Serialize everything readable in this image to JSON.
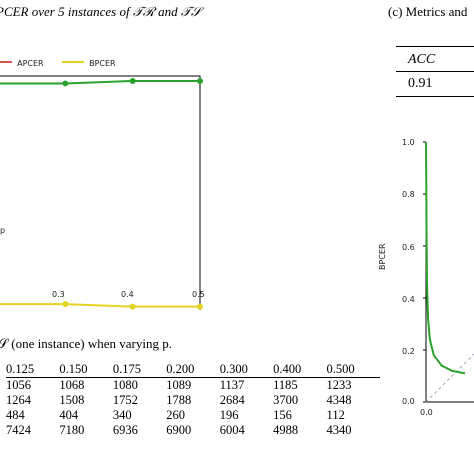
{
  "captions": {
    "left_top": "PCER over 5 instances of 𝒯ℛ and 𝒯𝒮",
    "right_top": "(c) Metrics and",
    "table_caption": "𝒮 (one instance) when varying p."
  },
  "legend": {
    "apcer": "APCER",
    "bpcer": "BPCER"
  },
  "colors": {
    "apcer": "#d9534f",
    "bpcer": "#e5d323",
    "acc_curve": "#2ca02c",
    "diag": "#9aa3b5"
  },
  "metric_table": {
    "header": "ACC",
    "value": "0.91"
  },
  "left_chart": {
    "x_label": "p",
    "x_ticks": [
      "0.3",
      "0.4",
      "0.5"
    ]
  },
  "right_chart": {
    "y_label": "BPCER",
    "y_ticks": [
      "1.0",
      "0.8",
      "0.6",
      "0.4",
      "0.2",
      "0.0"
    ],
    "x_ticks": [
      "0.0"
    ]
  },
  "data_table": {
    "header": [
      "0.125",
      "0.150",
      "0.175",
      "0.200",
      "0.300",
      "0.400",
      "0.500"
    ],
    "rows": [
      [
        "1056",
        "1068",
        "1080",
        "1089",
        "1137",
        "1185",
        "1233"
      ],
      [
        "1264",
        "1508",
        "1752",
        "1788",
        "2684",
        "3700",
        "4348"
      ],
      [
        "484",
        "404",
        "340",
        "260",
        "196",
        "156",
        "112"
      ],
      [
        "7424",
        "7180",
        "6936",
        "6900",
        "6004",
        "4988",
        "4340"
      ]
    ]
  },
  "chart_data": [
    {
      "type": "line",
      "x": [
        0.3,
        0.4,
        0.5
      ],
      "xlim": [
        0.2,
        0.5
      ],
      "ylim": [
        0,
        1
      ],
      "xlabel": "p",
      "series": [
        {
          "name": "APCER",
          "values": [
            0.02,
            0.02,
            0.02
          ]
        },
        {
          "name": "BPCER",
          "values": [
            0.08,
            0.07,
            0.07
          ]
        },
        {
          "values": [
            0.97,
            0.98,
            0.98
          ]
        }
      ]
    },
    {
      "type": "line",
      "ylabel": "BPCER",
      "ylim": [
        0,
        1
      ],
      "xlim": [
        0,
        1
      ],
      "series": [
        {
          "x": [
            0.0,
            0.001,
            0.002,
            0.004,
            0.008,
            0.015,
            0.03,
            0.06,
            0.1,
            0.15
          ],
          "values": [
            1.0,
            0.86,
            0.65,
            0.45,
            0.32,
            0.24,
            0.18,
            0.14,
            0.12,
            0.11
          ]
        }
      ]
    }
  ]
}
